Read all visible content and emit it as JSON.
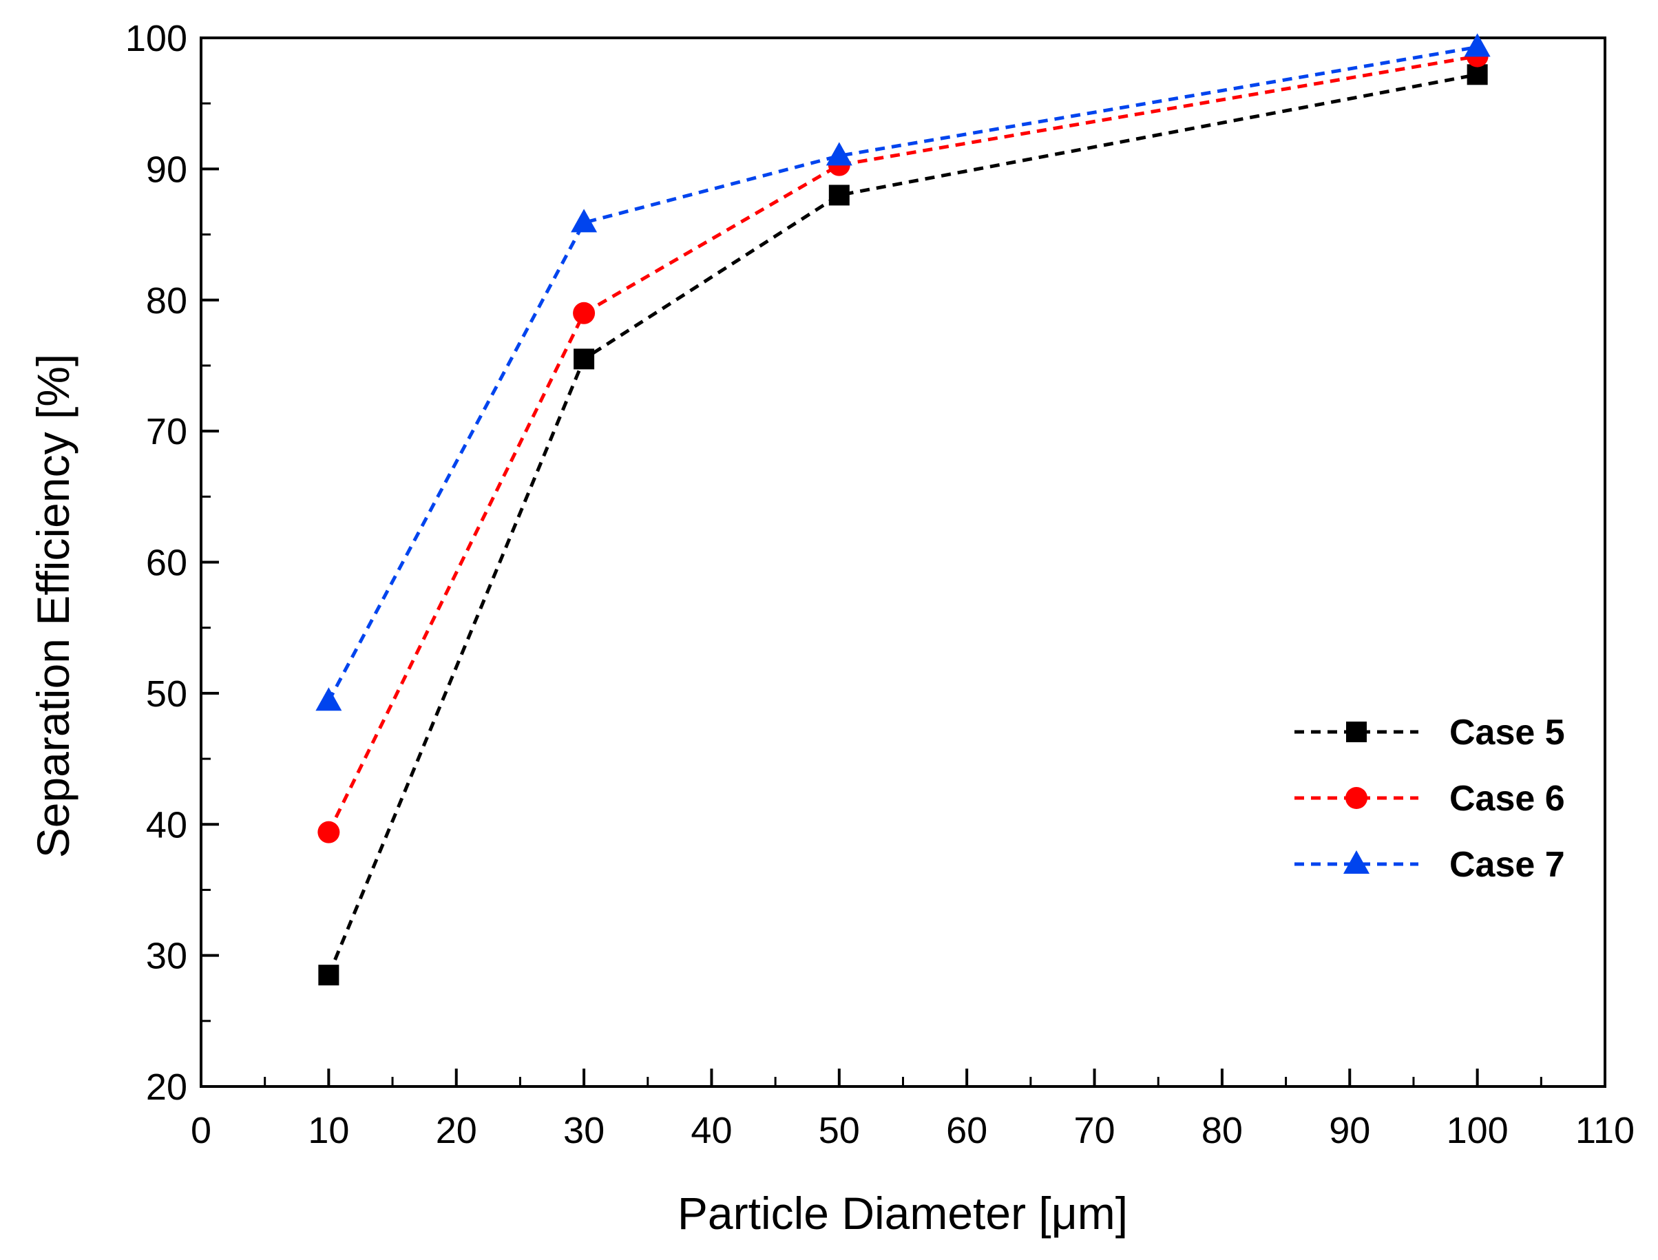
{
  "chart_data": {
    "type": "line",
    "xlabel": "Particle Diameter [μm]",
    "ylabel": "Separation Efficiency [%]",
    "xlim": [
      0,
      110
    ],
    "ylim": [
      20,
      100
    ],
    "xticks": [
      0,
      10,
      20,
      30,
      40,
      50,
      60,
      70,
      80,
      90,
      100,
      110
    ],
    "yticks": [
      20,
      30,
      40,
      50,
      60,
      70,
      80,
      90,
      100
    ],
    "grid": false,
    "legend_position": "right-middle",
    "x": [
      10,
      30,
      50,
      100
    ],
    "series": [
      {
        "name": "Case 5",
        "color": "#000000",
        "marker": "square",
        "values": [
          28.5,
          75.5,
          88.0,
          97.2
        ]
      },
      {
        "name": "Case 6",
        "color": "#ff0000",
        "marker": "circle",
        "values": [
          39.4,
          79.0,
          90.3,
          98.6
        ]
      },
      {
        "name": "Case 7",
        "color": "#0044ee",
        "marker": "triangle",
        "values": [
          49.4,
          85.9,
          91.0,
          99.3
        ]
      }
    ]
  }
}
